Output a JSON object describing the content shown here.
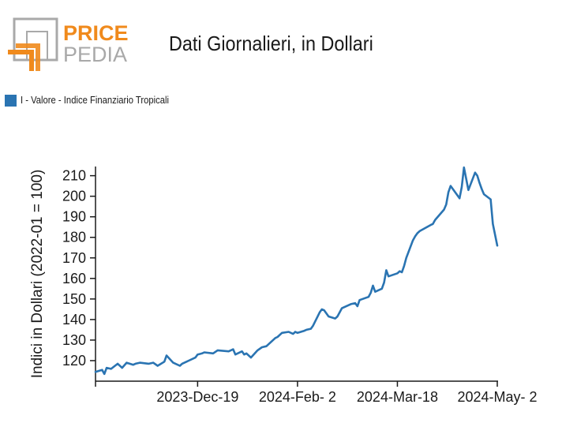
{
  "logo": {
    "word_top": "PRICE",
    "word_bottom": "PEDIA"
  },
  "colors": {
    "series": "#2a74b2",
    "logo_orange": "#f08a1c",
    "logo_gray": "#a9a9a9",
    "axis": "#1a1a1a"
  },
  "chart_data": {
    "type": "line",
    "title": "Dati Giornalieri, in Dollari",
    "ylabel": "Indici in Dollari (2022-01 = 100)",
    "xlabel": "",
    "ylim": [
      110,
      216
    ],
    "yticks": [
      120,
      130,
      140,
      150,
      160,
      170,
      180,
      190,
      200,
      210
    ],
    "xlim": [
      "2023-11-03",
      "2024-05-02"
    ],
    "xticks": [
      {
        "date": "2023-11-03",
        "label": ""
      },
      {
        "date": "2023-12-19",
        "label": "2023-Dec-19"
      },
      {
        "date": "2024-02-02",
        "label": "2024-Feb- 2"
      },
      {
        "date": "2024-03-18",
        "label": "2024-Mar-18"
      },
      {
        "date": "2024-05-02",
        "label": "2024-May- 2"
      }
    ],
    "legend": "top-left",
    "grid": false,
    "series": [
      {
        "name": "I - Valore - Indice Finanziario Tropicali",
        "x": [
          "2023-11-03",
          "2023-11-06",
          "2023-11-07",
          "2023-11-08",
          "2023-11-10",
          "2023-11-13",
          "2023-11-15",
          "2023-11-17",
          "2023-11-20",
          "2023-11-21",
          "2023-11-23",
          "2023-11-27",
          "2023-11-29",
          "2023-12-01",
          "2023-12-04",
          "2023-12-05",
          "2023-12-08",
          "2023-12-11",
          "2023-12-12",
          "2023-12-14",
          "2023-12-15",
          "2023-12-18",
          "2023-12-19",
          "2023-12-21",
          "2023-12-22",
          "2023-12-26",
          "2023-12-28",
          "2024-01-02",
          "2024-01-04",
          "2024-01-05",
          "2024-01-08",
          "2024-01-09",
          "2024-01-10",
          "2024-01-12",
          "2024-01-15",
          "2024-01-17",
          "2024-01-19",
          "2024-01-23",
          "2024-01-24",
          "2024-01-26",
          "2024-01-29",
          "2024-01-31",
          "2024-02-01",
          "2024-02-02",
          "2024-02-05",
          "2024-02-06",
          "2024-02-08",
          "2024-02-09",
          "2024-02-12",
          "2024-02-13",
          "2024-02-14",
          "2024-02-16",
          "2024-02-19",
          "2024-02-20",
          "2024-02-22",
          "2024-02-26",
          "2024-02-28",
          "2024-02-29",
          "2024-03-01",
          "2024-03-05",
          "2024-03-06",
          "2024-03-07",
          "2024-03-08",
          "2024-03-11",
          "2024-03-12",
          "2024-03-13",
          "2024-03-14",
          "2024-03-18",
          "2024-03-19",
          "2024-03-20",
          "2024-03-21",
          "2024-03-22",
          "2024-03-25",
          "2024-03-26",
          "2024-03-27",
          "2024-03-28",
          "2024-04-02",
          "2024-04-03",
          "2024-04-04",
          "2024-04-08",
          "2024-04-09",
          "2024-04-10",
          "2024-04-11",
          "2024-04-15",
          "2024-04-16",
          "2024-04-17",
          "2024-04-19",
          "2024-04-22",
          "2024-04-23",
          "2024-04-24",
          "2024-04-25",
          "2024-04-26",
          "2024-04-29",
          "2024-04-30",
          "2024-05-02"
        ],
        "values": [
          114.5,
          115.5,
          113.5,
          116.5,
          116.0,
          118.5,
          116.5,
          119.0,
          118.0,
          118.5,
          119.0,
          118.5,
          119.0,
          117.5,
          119.5,
          122.5,
          119.0,
          117.5,
          118.5,
          119.5,
          120.0,
          121.5,
          123.0,
          123.5,
          124.0,
          123.5,
          125.0,
          124.5,
          125.5,
          123.0,
          124.5,
          123.0,
          123.5,
          121.5,
          125.0,
          126.5,
          127.0,
          131.0,
          131.5,
          133.5,
          134.0,
          133.0,
          134.0,
          133.5,
          134.5,
          135.0,
          135.5,
          137.0,
          143.5,
          145.0,
          144.5,
          141.5,
          140.5,
          141.5,
          145.5,
          147.5,
          148.0,
          146.5,
          149.5,
          151.0,
          153.0,
          156.5,
          153.5,
          155.0,
          158.0,
          164.0,
          161.0,
          162.5,
          163.5,
          163.0,
          166.0,
          170.0,
          178.5,
          180.5,
          182.0,
          183.0,
          186.0,
          186.5,
          188.5,
          193.5,
          196.0,
          202.0,
          205.0,
          199.0,
          204.5,
          214.0,
          203.0,
          211.5,
          210.0,
          206.5,
          203.5,
          201.0,
          198.5,
          186.5,
          176.0
        ]
      }
    ]
  }
}
